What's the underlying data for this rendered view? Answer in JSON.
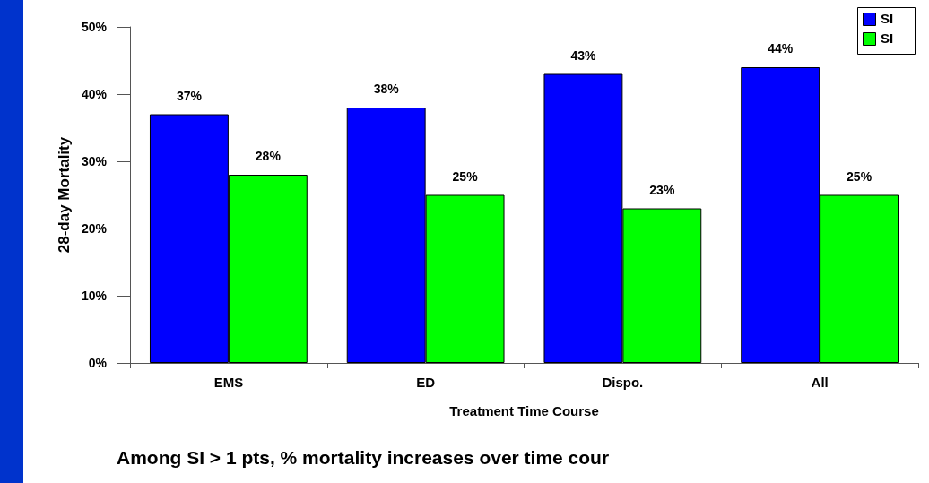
{
  "chart_data": {
    "type": "bar",
    "xlabel": "Treatment Time Course",
    "ylabel": "28-day Mortality",
    "categories": [
      "EMS",
      "ED",
      "Dispo.",
      "All"
    ],
    "series": [
      {
        "name": "SI",
        "color": "#0000ff",
        "values": [
          37,
          38,
          43,
          44
        ],
        "value_labels": [
          "37%",
          "38%",
          "43%",
          "44%"
        ]
      },
      {
        "name": "SI",
        "color": "#00ff00",
        "values": [
          28,
          25,
          23,
          25
        ],
        "value_labels": [
          "28%",
          "25%",
          "23%",
          "25%"
        ]
      }
    ],
    "ylim": [
      0,
      50
    ],
    "yticks": [
      {
        "value": 0,
        "label": "0%"
      },
      {
        "value": 10,
        "label": "10%"
      },
      {
        "value": 20,
        "label": "20%"
      },
      {
        "value": 30,
        "label": "30%"
      },
      {
        "value": 40,
        "label": "40%"
      },
      {
        "value": 50,
        "label": "50%"
      }
    ],
    "grid": false,
    "legend": "top right",
    "annotations": [
      "Among SI > 1 pts, % mortality increases over time cour"
    ]
  }
}
